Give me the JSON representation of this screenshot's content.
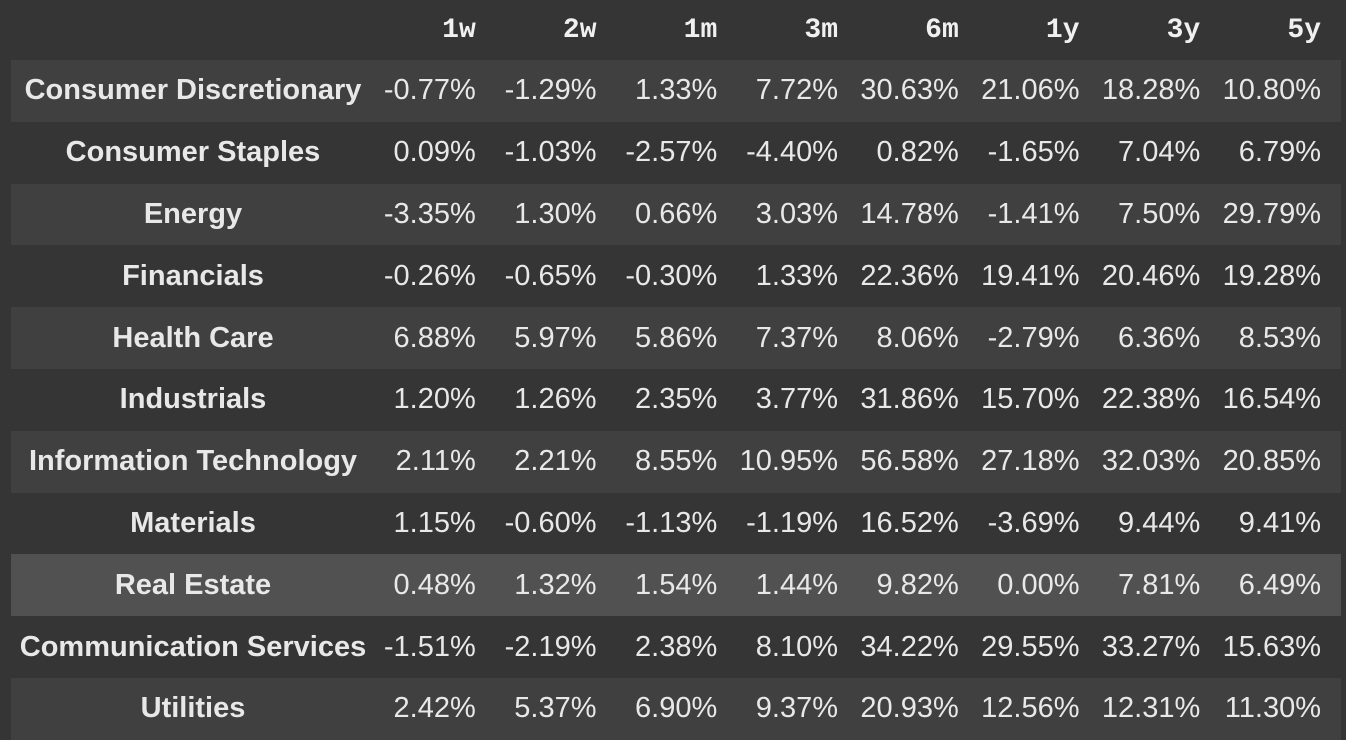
{
  "chart_data": {
    "type": "table",
    "columns": [
      "1w",
      "2w",
      "1m",
      "3m",
      "6m",
      "1y",
      "3y",
      "5y"
    ],
    "rows": [
      {
        "label": "Consumer Discretionary",
        "values": [
          "-0.77%",
          "-1.29%",
          "1.33%",
          "7.72%",
          "30.63%",
          "21.06%",
          "18.28%",
          "10.80%"
        ],
        "highlight": false
      },
      {
        "label": "Consumer Staples",
        "values": [
          "0.09%",
          "-1.03%",
          "-2.57%",
          "-4.40%",
          "0.82%",
          "-1.65%",
          "7.04%",
          "6.79%"
        ],
        "highlight": false
      },
      {
        "label": "Energy",
        "values": [
          "-3.35%",
          "1.30%",
          "0.66%",
          "3.03%",
          "14.78%",
          "-1.41%",
          "7.50%",
          "29.79%"
        ],
        "highlight": false
      },
      {
        "label": "Financials",
        "values": [
          "-0.26%",
          "-0.65%",
          "-0.30%",
          "1.33%",
          "22.36%",
          "19.41%",
          "20.46%",
          "19.28%"
        ],
        "highlight": false
      },
      {
        "label": "Health Care",
        "values": [
          "6.88%",
          "5.97%",
          "5.86%",
          "7.37%",
          "8.06%",
          "-2.79%",
          "6.36%",
          "8.53%"
        ],
        "highlight": false
      },
      {
        "label": "Industrials",
        "values": [
          "1.20%",
          "1.26%",
          "2.35%",
          "3.77%",
          "31.86%",
          "15.70%",
          "22.38%",
          "16.54%"
        ],
        "highlight": false
      },
      {
        "label": "Information Technology",
        "values": [
          "2.11%",
          "2.21%",
          "8.55%",
          "10.95%",
          "56.58%",
          "27.18%",
          "32.03%",
          "20.85%"
        ],
        "highlight": false
      },
      {
        "label": "Materials",
        "values": [
          "1.15%",
          "-0.60%",
          "-1.13%",
          "-1.19%",
          "16.52%",
          "-3.69%",
          "9.44%",
          "9.41%"
        ],
        "highlight": false
      },
      {
        "label": "Real Estate",
        "values": [
          "0.48%",
          "1.32%",
          "1.54%",
          "1.44%",
          "9.82%",
          "0.00%",
          "7.81%",
          "6.49%"
        ],
        "highlight": true
      },
      {
        "label": "Communication Services",
        "values": [
          "-1.51%",
          "-2.19%",
          "2.38%",
          "8.10%",
          "34.22%",
          "29.55%",
          "33.27%",
          "15.63%"
        ],
        "highlight": false
      },
      {
        "label": "Utilities",
        "values": [
          "2.42%",
          "5.37%",
          "6.90%",
          "9.37%",
          "20.93%",
          "12.56%",
          "12.31%",
          "11.30%"
        ],
        "highlight": false
      }
    ],
    "layout": {
      "row_label_alignment": "center",
      "value_alignment": "right",
      "grid": "off",
      "shaded_row_indices": [
        0,
        2,
        4,
        6,
        8,
        10
      ]
    }
  },
  "colors": {
    "page_background": "#353535",
    "shaded_row_background": "#404040",
    "highlight_row_background": "#515151",
    "header_text": "#f0f0f0",
    "cell_text": "#e8e8e8"
  }
}
